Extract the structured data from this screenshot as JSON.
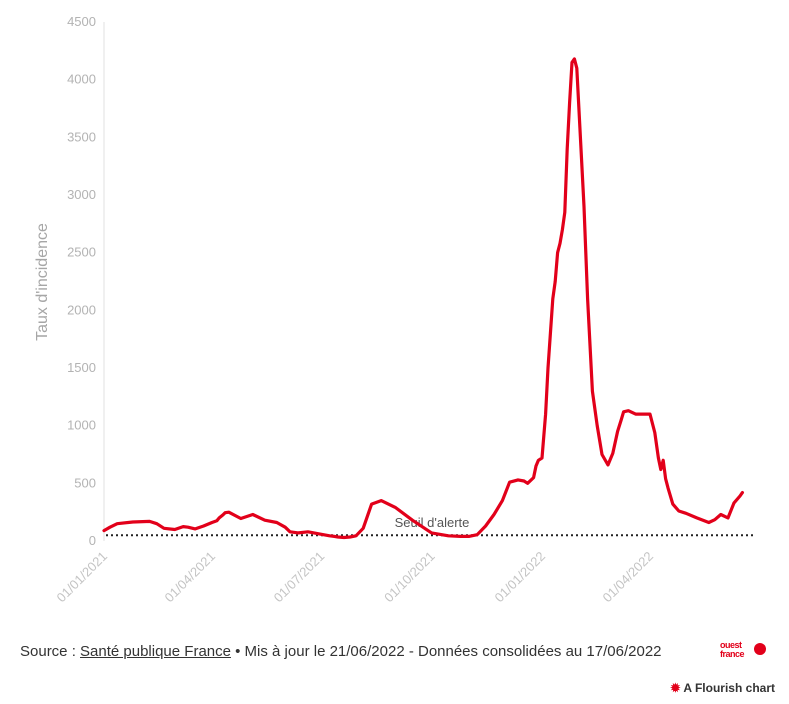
{
  "chart_data": {
    "type": "line",
    "ylabel": "Taux d'incidence",
    "ylim": [
      0,
      4500
    ],
    "yticks": [
      0,
      500,
      1000,
      1500,
      2000,
      2500,
      3000,
      3500,
      4000,
      4500
    ],
    "xticks": [
      "01/01/2021",
      "01/04/2021",
      "01/07/2021",
      "01/10/2021",
      "01/01/2022",
      "01/04/2022"
    ],
    "xlim": [
      "2021-01-01",
      "2022-06-17"
    ],
    "grid": false,
    "series": [
      {
        "color": "#e2001a",
        "x": [
          "2021-01-01",
          "2021-01-06",
          "2021-01-12",
          "2021-01-25",
          "2021-02-08",
          "2021-02-14",
          "2021-02-20",
          "2021-03-01",
          "2021-03-08",
          "2021-03-12",
          "2021-03-18",
          "2021-03-25",
          "2021-04-01",
          "2021-04-05",
          "2021-04-07",
          "2021-04-10",
          "2021-04-12",
          "2021-04-15",
          "2021-04-25",
          "2021-05-05",
          "2021-05-15",
          "2021-05-25",
          "2021-06-01",
          "2021-06-05",
          "2021-06-12",
          "2021-06-20",
          "2021-06-30",
          "2021-07-08",
          "2021-07-12",
          "2021-07-15",
          "2021-07-20",
          "2021-07-25",
          "2021-07-30",
          "2021-08-05",
          "2021-08-12",
          "2021-08-20",
          "2021-09-01",
          "2021-09-15",
          "2021-10-01",
          "2021-10-15",
          "2021-10-25",
          "2021-11-01",
          "2021-11-08",
          "2021-11-15",
          "2021-11-22",
          "2021-11-29",
          "2021-12-05",
          "2021-12-12",
          "2021-12-17",
          "2021-12-20",
          "2021-12-25",
          "2021-12-27",
          "2021-12-29",
          "2022-01-01",
          "2022-01-04",
          "2022-01-06",
          "2022-01-08",
          "2022-01-10",
          "2022-01-12",
          "2022-01-14",
          "2022-01-16",
          "2022-01-18",
          "2022-01-20",
          "2022-01-22",
          "2022-01-24",
          "2022-01-26",
          "2022-01-28",
          "2022-01-30",
          "2022-02-02",
          "2022-02-05",
          "2022-02-08",
          "2022-02-12",
          "2022-02-16",
          "2022-02-20",
          "2022-02-25",
          "2022-03-01",
          "2022-03-05",
          "2022-03-08",
          "2022-03-10",
          "2022-03-14",
          "2022-03-20",
          "2022-03-26",
          "2022-04-01",
          "2022-04-05",
          "2022-04-08",
          "2022-04-10",
          "2022-04-12",
          "2022-04-14",
          "2022-04-16",
          "2022-04-20",
          "2022-04-25",
          "2022-05-01",
          "2022-05-10",
          "2022-05-20",
          "2022-05-25",
          "2022-05-30",
          "2022-06-05",
          "2022-06-10",
          "2022-06-15",
          "2022-06-17"
        ],
        "values": [
          90,
          120,
          150,
          165,
          170,
          150,
          110,
          100,
          125,
          120,
          105,
          130,
          160,
          175,
          200,
          225,
          245,
          250,
          195,
          230,
          180,
          160,
          120,
          80,
          70,
          80,
          60,
          45,
          40,
          35,
          30,
          35,
          45,
          110,
          320,
          350,
          290,
          180,
          70,
          45,
          40,
          40,
          55,
          130,
          230,
          350,
          510,
          530,
          520,
          500,
          550,
          650,
          700,
          720,
          1100,
          1500,
          1800,
          2100,
          2250,
          2500,
          2580,
          2700,
          2850,
          3400,
          3800,
          4150,
          4180,
          4100,
          3500,
          2900,
          2100,
          1300,
          1000,
          750,
          660,
          760,
          950,
          1050,
          1120,
          1130,
          1100,
          1100,
          1100,
          940,
          720,
          620,
          700,
          540,
          460,
          320,
          260,
          240,
          200,
          160,
          185,
          230,
          200,
          330,
          390,
          420
        ]
      }
    ],
    "annotations": [
      {
        "text": "Seuil d'alerte",
        "y": 50,
        "style": "dotted"
      }
    ]
  },
  "footer": {
    "source_prefix": "Source : ",
    "source_link": "Santé publique France",
    "source_suffix": " • Mis à jour le 21/06/2022 - Données consolidées au 17/06/2022",
    "logo_text_1": "ouest",
    "logo_text_2": "france",
    "flourish_label": "A Flourish chart"
  }
}
